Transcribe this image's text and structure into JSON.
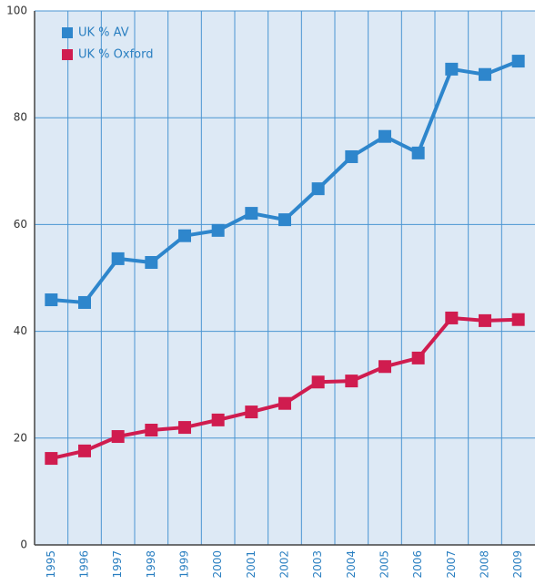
{
  "chart_data": {
    "type": "line",
    "categories": [
      "1995",
      "1996",
      "1997",
      "1998",
      "1999",
      "2000",
      "2001",
      "2002",
      "2003",
      "2004",
      "2005",
      "2006",
      "2007",
      "2008",
      "2009"
    ],
    "series": [
      {
        "name": "UK % AV",
        "color": "#2e86cc",
        "values": [
          45.9,
          45.4,
          53.6,
          52.9,
          57.9,
          58.9,
          62.1,
          60.9,
          66.7,
          72.7,
          76.5,
          73.4,
          89.1,
          88.1,
          90.6
        ]
      },
      {
        "name": "UK % Oxford",
        "color": "#d01c4f",
        "values": [
          16.2,
          17.6,
          20.3,
          21.5,
          22.0,
          23.4,
          24.9,
          26.5,
          30.5,
          30.7,
          33.4,
          35.0,
          42.5,
          42.0,
          42.2
        ]
      }
    ],
    "ylim": [
      0,
      100
    ],
    "yticks": [
      0,
      20,
      40,
      60,
      80,
      100
    ],
    "grid": true,
    "legend": "upper left"
  }
}
